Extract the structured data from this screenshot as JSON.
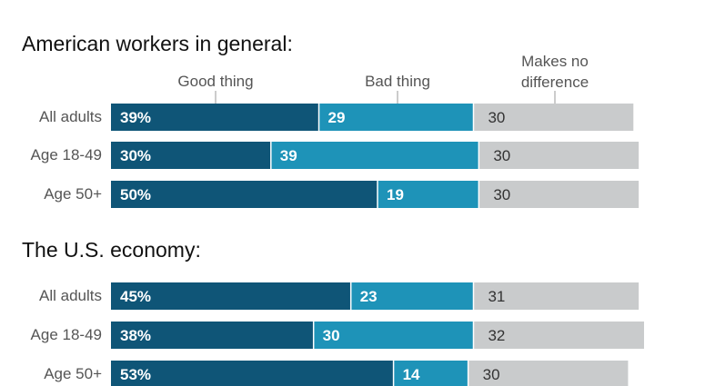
{
  "chart_data": [
    {
      "type": "bar",
      "orientation": "horizontal",
      "stacked": true,
      "title": "American workers in general:",
      "categories": [
        "All adults",
        "Age 18-49",
        "Age 50+"
      ],
      "series": [
        {
          "name": "Good thing",
          "values": [
            39,
            30,
            50
          ],
          "labels": [
            "39%",
            "30%",
            "50%"
          ]
        },
        {
          "name": "Bad thing",
          "values": [
            29,
            39,
            19
          ],
          "labels": [
            "29",
            "39",
            "19"
          ]
        },
        {
          "name": "Makes no difference",
          "values": [
            30,
            30,
            30
          ],
          "labels": [
            "30",
            "30",
            "30"
          ]
        }
      ],
      "xlim": [
        0,
        100
      ],
      "grid": false,
      "legend": "top, column labels above bars"
    },
    {
      "type": "bar",
      "orientation": "horizontal",
      "stacked": true,
      "title": "The U.S. economy:",
      "categories": [
        "All adults",
        "Age 18-49",
        "Age 50+"
      ],
      "series": [
        {
          "name": "Good thing",
          "values": [
            45,
            38,
            53
          ],
          "labels": [
            "45%",
            "38%",
            "53%"
          ]
        },
        {
          "name": "Bad thing",
          "values": [
            23,
            30,
            14
          ],
          "labels": [
            "23",
            "30",
            "14"
          ]
        },
        {
          "name": "Makes no difference",
          "values": [
            31,
            32,
            30
          ],
          "labels": [
            "31",
            "32",
            "30"
          ]
        }
      ],
      "xlim": [
        0,
        100
      ],
      "grid": false
    }
  ],
  "legend_labels": {
    "good": "Good thing",
    "bad": "Bad thing",
    "none_line1": "Makes no",
    "none_line2": "difference"
  },
  "colors": {
    "good": "#0f5577",
    "bad": "#1e93b8",
    "none": "#c9cbcc"
  }
}
